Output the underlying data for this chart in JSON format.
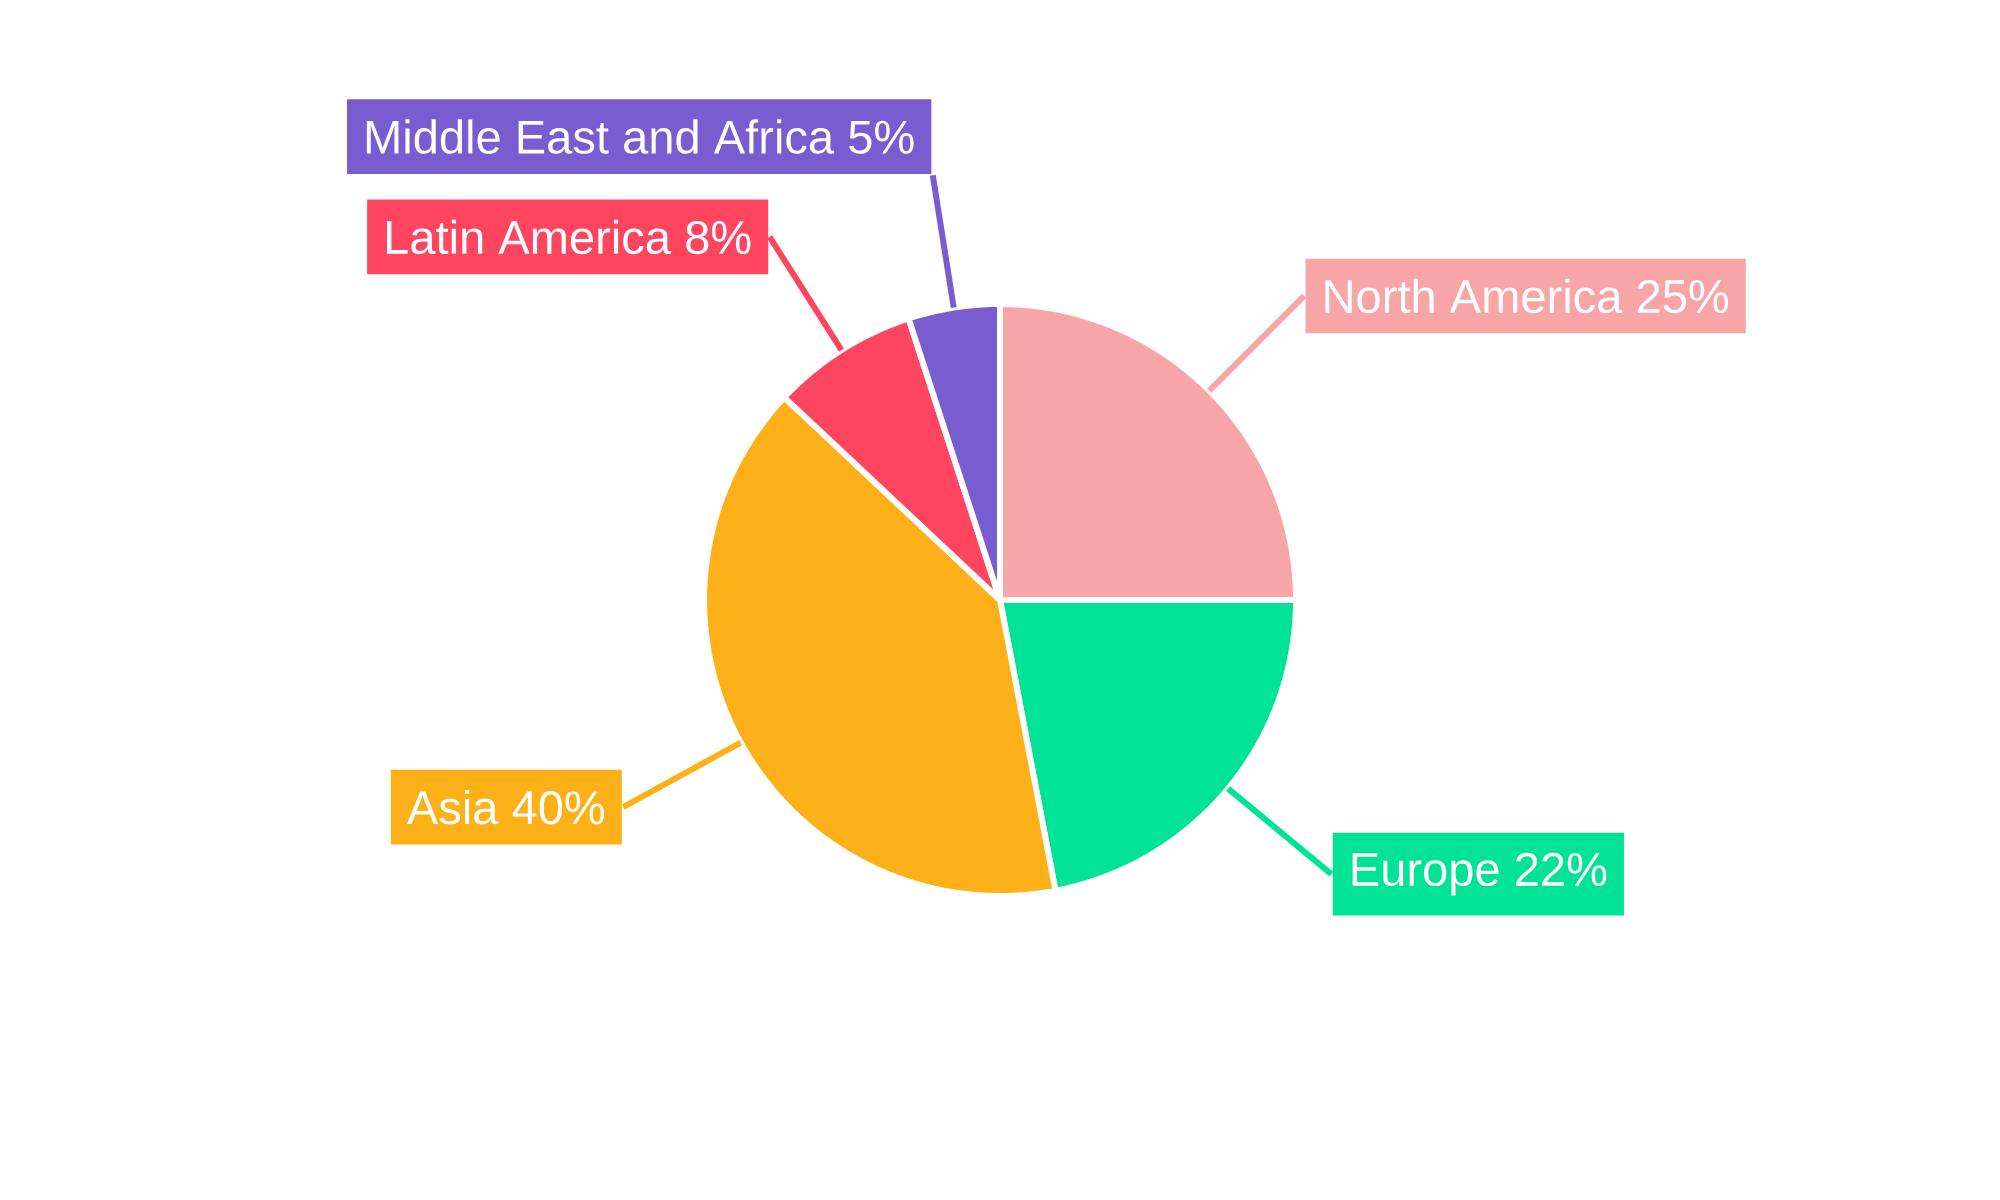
{
  "chart_data": {
    "type": "pie",
    "categories": [
      "North America",
      "Europe",
      "Asia",
      "Latin America",
      "Middle East and Africa"
    ],
    "values": [
      25,
      22,
      40,
      8,
      5
    ],
    "value_labels": [
      "25%",
      "22%",
      "40%",
      "8%",
      "5%"
    ],
    "colors": [
      "#f8a5a7",
      "#00e396",
      "#feb019",
      "#ff4560",
      "#775dd0"
    ]
  }
}
